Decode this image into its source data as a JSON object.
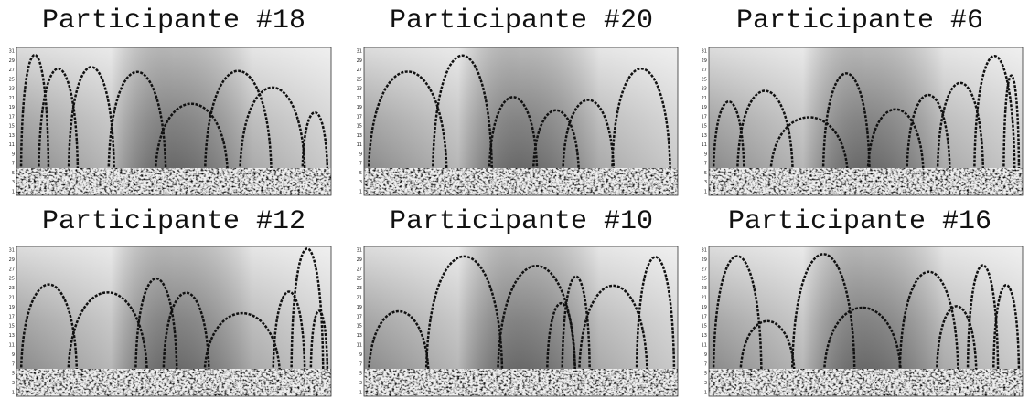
{
  "panels": [
    {
      "title": "Participante #18"
    },
    {
      "title": "Participante #20"
    },
    {
      "title": "Participante #6"
    },
    {
      "title": "Participante #12"
    },
    {
      "title": "Participante #10"
    },
    {
      "title": "Participante #16"
    }
  ],
  "yticks": [
    31,
    29,
    27,
    25,
    23,
    21,
    19,
    17,
    15,
    13,
    11,
    9,
    7,
    5,
    3,
    1
  ]
}
